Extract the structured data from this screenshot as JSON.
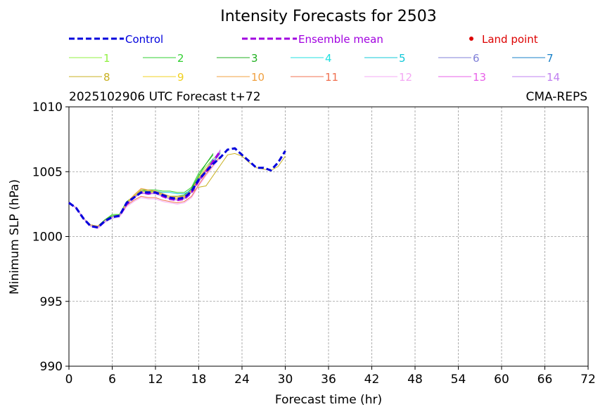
{
  "chart_data": {
    "type": "line",
    "title": "Intensity Forecasts for 2503",
    "subtitle_left": "2025102906 UTC Forecast t+72",
    "subtitle_right": "CMA-REPS",
    "xlabel": "Forecast time (hr)",
    "ylabel": "Minimum SLP (hPa)",
    "xlim": [
      0,
      72
    ],
    "ylim": [
      990,
      1010
    ],
    "xticks": [
      0,
      6,
      12,
      18,
      24,
      30,
      36,
      42,
      48,
      54,
      60,
      66,
      72
    ],
    "yticks": [
      990,
      995,
      1000,
      1005,
      1010
    ],
    "grid": true,
    "legend_top": [
      {
        "name": "Control",
        "color": "#0000dd",
        "style": "dashed"
      },
      {
        "name": "Ensemble mean",
        "color": "#a100e0",
        "style": "dashed"
      },
      {
        "name": "Land point",
        "color": "#dd0000",
        "style": "marker"
      }
    ],
    "x": [
      0,
      1,
      2,
      3,
      4,
      5,
      6,
      7,
      8,
      9,
      10,
      11,
      12,
      13,
      14,
      15,
      16,
      17,
      18,
      19,
      20,
      21,
      22,
      23,
      24,
      25,
      26,
      27,
      28,
      29,
      30
    ],
    "control": [
      1002.6,
      1002.2,
      1001.4,
      1000.8,
      1000.7,
      1001.2,
      1001.5,
      1001.6,
      1002.6,
      1003.0,
      1003.4,
      1003.4,
      1003.4,
      1003.2,
      1003.0,
      1002.9,
      1003.0,
      1003.5,
      1004.4,
      1005.0,
      1005.6,
      1006.1,
      1006.7,
      1006.8,
      1006.3,
      1005.8,
      1005.3,
      1005.3,
      1005.1,
      1005.7,
      1006.6
    ],
    "ensemble_mean": [
      1002.6,
      1002.2,
      1001.4,
      1000.8,
      1000.7,
      1001.2,
      1001.5,
      1001.6,
      1002.5,
      1003.0,
      1003.4,
      1003.3,
      1003.4,
      1003.1,
      1002.9,
      1002.8,
      1002.9,
      1003.4,
      1004.3,
      1005.0,
      1005.8,
      1006.6
    ],
    "members": [
      {
        "name": "1",
        "color": "#90f040",
        "values": [
          1002.6,
          1002.2,
          1001.4,
          1000.9,
          1000.8,
          1001.3,
          1001.6,
          1001.7,
          1002.6,
          1003.1,
          1003.5,
          1003.4,
          1003.5,
          1003.2,
          1003.0,
          1002.9,
          1003.0,
          1003.6,
          1004.6,
          1005.4,
          1006.0,
          1006.5
        ]
      },
      {
        "name": "2",
        "color": "#30d030",
        "values": [
          1002.6,
          1002.2,
          1001.4,
          1000.9,
          1000.8,
          1001.3,
          1001.7,
          1001.7,
          1002.7,
          1003.1,
          1003.6,
          1003.6,
          1003.6,
          1003.5,
          1003.5,
          1003.4,
          1003.4,
          1003.8,
          1004.9,
          1005.6,
          1006.3
        ]
      },
      {
        "name": "3",
        "color": "#20b020",
        "values": [
          1002.6,
          1002.2,
          1001.4,
          1000.9,
          1000.8,
          1001.3,
          1001.6,
          1001.6,
          1002.6,
          1003.1,
          1003.5,
          1003.5,
          1003.5,
          1003.3,
          1003.1,
          1003.1,
          1003.2,
          1003.7,
          1004.7,
          1005.6,
          1006.4
        ]
      },
      {
        "name": "4",
        "color": "#20e0e0",
        "values": [
          1002.6,
          1002.2,
          1001.4,
          1000.8,
          1000.7,
          1001.2,
          1001.5,
          1001.6,
          1002.5,
          1003.0,
          1003.4,
          1003.3,
          1003.4,
          1003.1,
          1002.9,
          1002.8,
          1002.9,
          1003.4,
          1004.3,
          1005.0,
          1005.7,
          1006.5
        ]
      },
      {
        "name": "5",
        "color": "#10c8d8",
        "values": [
          1002.6,
          1002.2,
          1001.4,
          1000.8,
          1000.7,
          1001.1,
          1001.4,
          1001.5,
          1002.5,
          1003.0,
          1003.5,
          1003.5,
          1003.5,
          1003.4,
          1003.4,
          1003.3,
          1003.3,
          1003.6,
          1004.5,
          1005.2,
          1006.0
        ]
      },
      {
        "name": "6",
        "color": "#8080d8",
        "values": [
          1002.6,
          1002.2,
          1001.4,
          1000.8,
          1000.7,
          1001.2,
          1001.5,
          1001.6,
          1002.5,
          1003.0,
          1003.4,
          1003.3,
          1003.3,
          1003.1,
          1002.9,
          1002.8,
          1002.9,
          1003.4,
          1004.3,
          1005.0,
          1005.7,
          1006.4
        ]
      },
      {
        "name": "7",
        "color": "#1880c8",
        "values": [
          1002.6,
          1002.2,
          1001.4,
          1000.8,
          1000.7,
          1001.2,
          1001.5,
          1001.6,
          1002.5,
          1003.0,
          1003.4,
          1003.3,
          1003.4,
          1003.2,
          1003.0,
          1002.9,
          1003.0,
          1003.5,
          1004.4,
          1005.1,
          1005.8
        ]
      },
      {
        "name": "8",
        "color": "#c8b020",
        "values": [
          1002.6,
          1002.2,
          1001.4,
          1000.8,
          1000.7,
          1001.2,
          1001.5,
          1001.6,
          1002.5,
          1003.1,
          1003.6,
          1003.5,
          1003.5,
          1003.3,
          1003.1,
          1003.1,
          1003.1,
          1003.4,
          1003.8,
          1003.9,
          1004.7,
          1005.5,
          1006.3,
          1006.4,
          1006.2,
          1005.7,
          1005.3,
          1005.2,
          1005.1,
          1005.4,
          1006.2
        ]
      },
      {
        "name": "9",
        "color": "#f0d020",
        "values": [
          1002.6,
          1002.2,
          1001.4,
          1000.8,
          1000.7,
          1001.2,
          1001.5,
          1001.6,
          1002.6,
          1003.1,
          1003.5,
          1003.4,
          1003.4,
          1003.2,
          1003.0,
          1002.9,
          1003.0,
          1003.5,
          1004.5,
          1005.2,
          1005.9
        ]
      },
      {
        "name": "10",
        "color": "#f0a040",
        "values": [
          1002.6,
          1002.2,
          1001.4,
          1000.9,
          1000.8,
          1001.2,
          1001.5,
          1001.6,
          1002.6,
          1003.2,
          1003.7,
          1003.6,
          1003.5,
          1003.3,
          1003.1,
          1003.0,
          1003.1,
          1003.6,
          1004.5,
          1005.2,
          1005.9
        ]
      },
      {
        "name": "11",
        "color": "#f07050",
        "values": [
          1002.6,
          1002.2,
          1001.4,
          1000.8,
          1000.7,
          1001.2,
          1001.5,
          1001.6,
          1002.4,
          1002.8,
          1003.1,
          1003.0,
          1003.0,
          1002.8,
          1002.7,
          1002.6,
          1002.7,
          1003.1,
          1004.0,
          1004.8,
          1005.5,
          1006.2
        ]
      },
      {
        "name": "12",
        "color": "#f4a8f4",
        "values": [
          1002.6,
          1002.2,
          1001.4,
          1000.8,
          1000.6,
          1001.1,
          1001.4,
          1001.5,
          1002.3,
          1002.7,
          1003.0,
          1002.9,
          1002.9,
          1002.7,
          1002.6,
          1002.5,
          1002.6,
          1003.0,
          1003.9,
          1004.7,
          1005.4,
          1006.1
        ]
      },
      {
        "name": "13",
        "color": "#e860e8",
        "values": [
          1002.6,
          1002.2,
          1001.4,
          1000.8,
          1000.7,
          1001.2,
          1001.5,
          1001.6,
          1002.5,
          1003.0,
          1003.4,
          1003.3,
          1003.4,
          1003.1,
          1002.9,
          1002.8,
          1002.9,
          1003.4,
          1004.3,
          1005.1,
          1005.8,
          1006.6
        ]
      },
      {
        "name": "14",
        "color": "#c080f0",
        "values": [
          1002.6,
          1002.2,
          1001.4,
          1000.8,
          1000.7,
          1001.2,
          1001.5,
          1001.6,
          1002.5,
          1003.0,
          1003.3,
          1003.3,
          1003.3,
          1003.1,
          1002.9,
          1002.8,
          1002.9,
          1003.4,
          1004.2,
          1005.0,
          1005.8,
          1006.7
        ]
      }
    ]
  }
}
